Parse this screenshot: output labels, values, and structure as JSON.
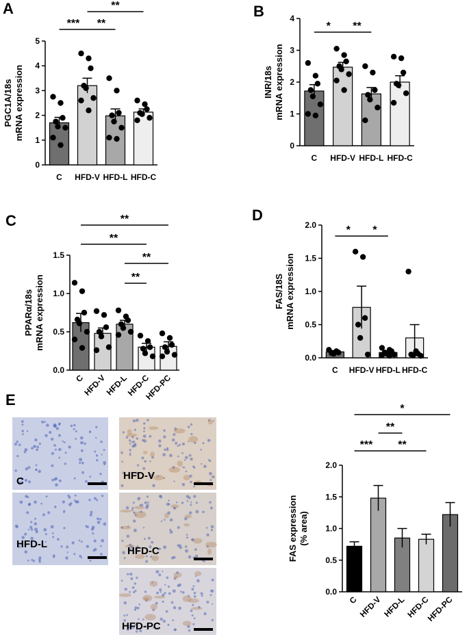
{
  "panels": {
    "A": "A",
    "B": "B",
    "C": "C",
    "D": "D",
    "E": "E"
  },
  "chart_data": [
    {
      "panel": "A",
      "type": "bar",
      "categories": [
        "C",
        "HFD-V",
        "HFD-L",
        "HFD-C"
      ],
      "values": [
        1.7,
        3.2,
        1.98,
        2.13
      ],
      "errors": [
        0.22,
        0.3,
        0.28,
        0.13
      ],
      "points": [
        [
          2.75,
          2.5,
          1.9,
          1.75,
          1.55,
          1.5,
          1.1,
          0.8
        ],
        [
          4.5,
          4.3,
          3.9,
          3.2,
          3.1,
          2.7,
          2.6,
          2.2
        ],
        [
          3.5,
          3.0,
          2.1,
          2.0,
          1.75,
          1.5,
          1.1,
          1.05
        ],
        [
          2.6,
          2.45,
          2.25,
          2.1,
          2.05,
          1.9,
          1.8
        ]
      ],
      "bar_colors": [
        "#6f6f6f",
        "#d2d2d2",
        "#a8a8a8",
        "#eeeeee"
      ],
      "ylabel": [
        "PGC1A/18s",
        "mRNA expression"
      ],
      "ylim": [
        0,
        5
      ],
      "yticks": [
        "0",
        "1",
        "2",
        "3",
        "4",
        "5"
      ],
      "significance": [
        {
          "from": 0,
          "to": 1,
          "label": "***"
        },
        {
          "from": 1,
          "to": 2,
          "label": "**"
        },
        {
          "from": 1,
          "to": 3,
          "label": "**"
        }
      ]
    },
    {
      "panel": "B",
      "type": "bar",
      "categories": [
        "C",
        "HFD-V",
        "HFD-L",
        "HFD-C"
      ],
      "values": [
        1.72,
        2.47,
        1.63,
        2.0
      ],
      "errors": [
        0.2,
        0.15,
        0.2,
        0.2
      ],
      "points": [
        [
          2.6,
          2.2,
          1.95,
          1.75,
          1.55,
          1.3,
          1.0,
          0.95
        ],
        [
          3.05,
          2.85,
          2.65,
          2.5,
          2.4,
          2.25,
          2.05,
          1.75
        ],
        [
          2.5,
          2.3,
          1.75,
          1.6,
          1.45,
          1.2,
          0.8
        ],
        [
          2.8,
          2.75,
          2.3,
          1.95,
          1.9,
          1.65,
          1.35
        ]
      ],
      "bar_colors": [
        "#6f6f6f",
        "#d2d2d2",
        "#a8a8a8",
        "#eeeeee"
      ],
      "ylabel": [
        "INR/18s",
        "mRNA expression"
      ],
      "ylim": [
        0,
        4
      ],
      "yticks": [
        "0",
        "1",
        "2",
        "3",
        "4"
      ],
      "significance": [
        {
          "from": 0,
          "to": 1,
          "label": "*"
        },
        {
          "from": 1,
          "to": 2,
          "label": "**"
        }
      ]
    },
    {
      "panel": "C",
      "type": "bar",
      "categories": [
        "C",
        "HFD-V",
        "HFD-L",
        "HFD-C",
        "HFD-PC"
      ],
      "values": [
        0.62,
        0.48,
        0.6,
        0.3,
        0.31
      ],
      "errors": [
        0.12,
        0.07,
        0.05,
        0.05,
        0.06
      ],
      "points": [
        [
          1.14,
          1.03,
          0.75,
          0.66,
          0.61,
          0.5,
          0.4,
          0.29
        ],
        [
          0.77,
          0.72,
          0.56,
          0.5,
          0.44,
          0.3,
          0.26
        ],
        [
          0.78,
          0.7,
          0.65,
          0.6,
          0.55,
          0.5,
          0.46
        ],
        [
          0.45,
          0.38,
          0.3,
          0.28,
          0.22,
          0.18
        ],
        [
          0.48,
          0.42,
          0.33,
          0.3,
          0.24,
          0.2,
          0.18
        ]
      ],
      "bar_colors": [
        "#6f6f6f",
        "#d2d2d2",
        "#a8a8a8",
        "#eeeeee",
        "#eeeeee"
      ],
      "ylabel": [
        "PPARα/18s",
        "mRNA expression"
      ],
      "ylim": [
        0,
        1.5
      ],
      "yticks": [
        "0.0",
        "0.5",
        "1.0",
        "1.5"
      ],
      "significance": [
        {
          "from": 0,
          "to": 4,
          "label": "**"
        },
        {
          "from": 0,
          "to": 3,
          "label": "**"
        },
        {
          "from": 2,
          "to": 4,
          "label": "**"
        },
        {
          "from": 2,
          "to": 3,
          "label": "**"
        }
      ]
    },
    {
      "panel": "D",
      "type": "bar",
      "categories": [
        "C",
        "HFD-V",
        "HFD-L",
        "HFD-C"
      ],
      "values": [
        0.09,
        0.76,
        0.08,
        0.3
      ],
      "errors": [
        0.02,
        0.32,
        0.02,
        0.2
      ],
      "points": [
        [
          0.12,
          0.1,
          0.08,
          0.07,
          0.06
        ],
        [
          1.6,
          1.52,
          0.6,
          0.5,
          0.3,
          0.05
        ],
        [
          0.15,
          0.12,
          0.1,
          0.08,
          0.06,
          0.05,
          0.04,
          0.03
        ],
        [
          1.3,
          0.1,
          0.06,
          0.05,
          0.04,
          0.03
        ]
      ],
      "bar_colors": [
        "#6f6f6f",
        "#d2d2d2",
        "#a8a8a8",
        "#eeeeee"
      ],
      "ylabel": [
        "FAS/18S",
        "mRNA expression"
      ],
      "ylim": [
        0,
        2
      ],
      "yticks": [
        "0.0",
        "0.5",
        "1.0",
        "1.5",
        "2.0"
      ],
      "significance": [
        {
          "from": 0,
          "to": 1,
          "label": "*"
        },
        {
          "from": 1,
          "to": 2,
          "label": "*"
        }
      ]
    },
    {
      "panel": "E",
      "type": "bar",
      "categories": [
        "C",
        "HFD-V",
        "HFD-L",
        "HFD-C",
        "HFD-PC"
      ],
      "values": [
        0.72,
        1.48,
        0.85,
        0.83,
        1.22
      ],
      "errors": [
        0.07,
        0.2,
        0.15,
        0.08,
        0.19
      ],
      "bar_colors": [
        "#000000",
        "#a8a8a8",
        "#808080",
        "#d4d4d4",
        "#6c6c6c"
      ],
      "ylabel": [
        "FAS expression",
        "(% area)"
      ],
      "ylim": [
        0,
        2
      ],
      "yticks": [
        "0.0",
        "0.5",
        "1.0",
        "1.5",
        "2.0"
      ],
      "significance": [
        {
          "from": 0,
          "to": 4,
          "label": "*"
        },
        {
          "from": 1,
          "to": 2,
          "label": "**"
        },
        {
          "from": 0,
          "to": 1,
          "label": "***"
        },
        {
          "from": 1,
          "to": 3,
          "label": "**"
        }
      ]
    }
  ],
  "micrographs": [
    {
      "label": "C",
      "tone": "#c7cde4"
    },
    {
      "label": "HFD-V",
      "tone": "#d8cdc6"
    },
    {
      "label": "HFD-L",
      "tone": "#c6cce3"
    },
    {
      "label": "HFD-C",
      "tone": "#d3cdcb"
    },
    {
      "label": "HFD-PC",
      "tone": "#d6d4dc"
    }
  ]
}
